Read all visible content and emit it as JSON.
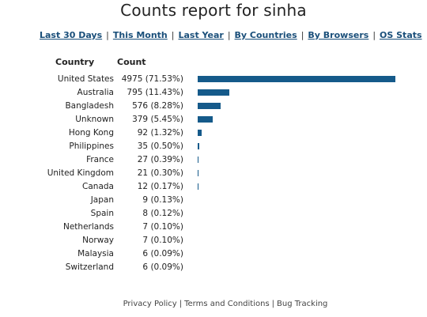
{
  "title": "Counts report for sinha",
  "nav": {
    "items": [
      {
        "label": "Last 30 Days"
      },
      {
        "label": "This Month"
      },
      {
        "label": "Last Year"
      },
      {
        "label": "By Countries"
      },
      {
        "label": "By Browsers"
      },
      {
        "label": "OS Stats"
      }
    ],
    "separator": "|"
  },
  "table": {
    "headers": {
      "country": "Country",
      "count": "Count"
    },
    "rows": [
      {
        "country": "United States",
        "count": "4975 (71.53%)",
        "value": 4975
      },
      {
        "country": "Australia",
        "count": "795 (11.43%)",
        "value": 795
      },
      {
        "country": "Bangladesh",
        "count": "576 (8.28%)",
        "value": 576
      },
      {
        "country": "Unknown",
        "count": "379 (5.45%)",
        "value": 379
      },
      {
        "country": "Hong Kong",
        "count": "92 (1.32%)",
        "value": 92
      },
      {
        "country": "Philippines",
        "count": "35 (0.50%)",
        "value": 35
      },
      {
        "country": "France",
        "count": "27 (0.39%)",
        "value": 27
      },
      {
        "country": "United Kingdom",
        "count": "21 (0.30%)",
        "value": 21
      },
      {
        "country": "Canada",
        "count": "12 (0.17%)",
        "value": 12
      },
      {
        "country": "Japan",
        "count": "9 (0.13%)",
        "value": 9
      },
      {
        "country": "Spain",
        "count": "8 (0.12%)",
        "value": 8
      },
      {
        "country": "Netherlands",
        "count": "7 (0.10%)",
        "value": 7
      },
      {
        "country": "Norway",
        "count": "7 (0.10%)",
        "value": 7
      },
      {
        "country": "Malaysia",
        "count": "6 (0.09%)",
        "value": 6
      },
      {
        "country": "Switzerland",
        "count": "6 (0.09%)",
        "value": 6
      }
    ]
  },
  "bar_color": "#155a8a",
  "footer": {
    "links": [
      {
        "label": "Privacy Policy"
      },
      {
        "label": "Terms and Conditions"
      },
      {
        "label": "Bug Tracking"
      }
    ],
    "separator": "|"
  }
}
